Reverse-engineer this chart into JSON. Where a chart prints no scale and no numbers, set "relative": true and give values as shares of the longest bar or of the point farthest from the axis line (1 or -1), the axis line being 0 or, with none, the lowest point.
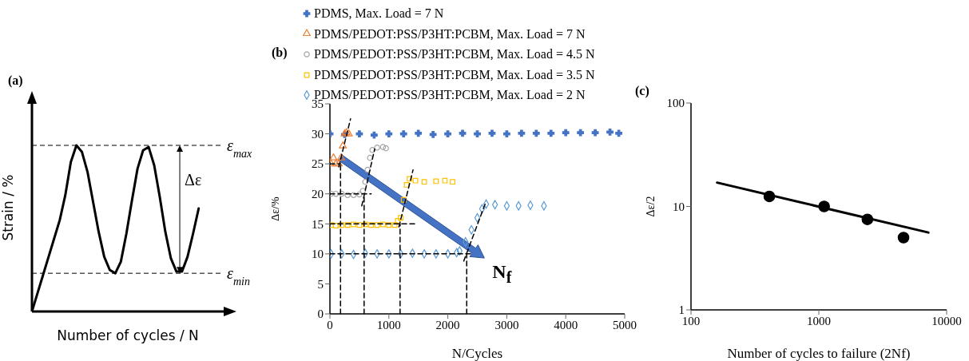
{
  "chart_data": [
    {
      "type": "line",
      "title": "(a)",
      "xlabel": "Number of cycles / N",
      "ylabel": "Strain / %",
      "relative": true,
      "color": "#000000",
      "marker": "none",
      "line_style": "solid",
      "categories": [
        null,
        null,
        null,
        null,
        null,
        null,
        null,
        null,
        null,
        null,
        null,
        null,
        null,
        null,
        null,
        null,
        null,
        null,
        null,
        null,
        null,
        null,
        null,
        null,
        null,
        null,
        null,
        null,
        null,
        null,
        null
      ],
      "values": [
        0,
        0.11,
        0.22,
        0.33,
        0.44,
        0.55,
        0.7,
        0.9,
        1,
        0.96,
        0.84,
        0.66,
        0.48,
        0.33,
        0.25,
        0.23,
        0.3,
        0.47,
        0.67,
        0.86,
        0.97,
        0.99,
        0.88,
        0.69,
        0.48,
        0.32,
        0.24,
        0.24,
        0.33,
        0.47,
        0.62
      ],
      "ref_lines": [
        {
          "axis": "y",
          "value": 1,
          "label": "ε$_{max}$",
          "color": "#000000",
          "line_style": "dashed"
        },
        {
          "axis": "y",
          "value": 0.23,
          "label": "ε$_{min}$",
          "color": "#000000",
          "line_style": "dashed"
        }
      ],
      "annotations": [
        "Δε"
      ]
    },
    {
      "type": "scatter",
      "title": "(b)",
      "xlabel": "N/Cycles",
      "ylabel": "Δε/%",
      "xlim": [
        0,
        5000
      ],
      "xticks": [
        0,
        1000,
        2000,
        3000,
        4000,
        5000
      ],
      "ylim": [
        0,
        35
      ],
      "yticks": [
        0,
        5,
        10,
        15,
        20,
        25,
        30,
        35
      ],
      "legend": "top",
      "annotations": [
        "N$_{f}$"
      ],
      "series": [
        {
          "name": "PDMS, Max. Load = 7 N",
          "color": "#4472c4",
          "marker": "cross",
          "x": [
            0,
            250,
            500,
            750,
            1000,
            1250,
            1500,
            1750,
            2000,
            2250,
            2500,
            2750,
            3000,
            3250,
            3500,
            3750,
            4000,
            4250,
            4500,
            4750,
            4900
          ],
          "values": [
            30,
            29.9,
            30,
            29.8,
            30,
            30,
            30.1,
            29.9,
            30,
            30.1,
            30,
            30.1,
            30,
            30.1,
            30.1,
            30.1,
            30.2,
            30.2,
            30.2,
            30.3,
            30.1
          ]
        },
        {
          "name": "PDMS/PEDOT:PSS/P3HT:PCBM, Max. Load = 7 N",
          "color": "#ed7d31",
          "marker": "triangle",
          "x": [
            20,
            60,
            100,
            150,
            190,
            220,
            250,
            280,
            320
          ],
          "values": [
            25,
            26,
            25,
            25,
            26,
            28,
            30,
            30.2,
            30
          ]
        },
        {
          "name": "PDMS/PEDOT:PSS/P3HT:PCBM, Max. Load = 4.5 N",
          "color": "#a5a5a5",
          "marker": "circle",
          "x": [
            20,
            100,
            200,
            300,
            400,
            500,
            560,
            600,
            640,
            680,
            720,
            800,
            900,
            950
          ],
          "values": [
            20,
            20,
            20,
            19.8,
            19.8,
            19.9,
            20.5,
            22,
            24,
            26,
            27.3,
            27.7,
            27.8,
            27.6
          ]
        },
        {
          "name": "PDMS/PEDOT:PSS/P3HT:PCBM, Max. Load = 3.5 N",
          "color": "#ffc000",
          "marker": "square",
          "x": [
            20,
            100,
            200,
            300,
            400,
            500,
            600,
            700,
            800,
            900,
            1000,
            1100,
            1150,
            1200,
            1250,
            1300,
            1350,
            1450,
            1600,
            1800,
            1950,
            2080
          ],
          "values": [
            14.8,
            14.7,
            14.8,
            14.8,
            14.9,
            14.8,
            14.9,
            14.8,
            14.8,
            14.9,
            14.8,
            14.8,
            15.5,
            16,
            19,
            21.5,
            22.5,
            22.2,
            22,
            22.1,
            22.2,
            22
          ]
        },
        {
          "name": "PDMS/PEDOT:PSS/P3HT:PCBM, Max. Load = 2 N",
          "color": "#5b9bd5",
          "marker": "diamond",
          "x": [
            20,
            200,
            400,
            600,
            800,
            1000,
            1200,
            1400,
            1600,
            1800,
            2000,
            2150,
            2200,
            2300,
            2400,
            2500,
            2580,
            2650,
            2800,
            3000,
            3200,
            3400,
            3630
          ],
          "values": [
            10,
            10,
            9.9,
            10.1,
            10,
            10,
            10,
            10.1,
            10,
            10,
            10,
            10.2,
            10.5,
            12,
            14,
            16,
            17.5,
            18.3,
            18.2,
            18,
            18,
            18.1,
            18
          ]
        },
        {
          "type": "line",
          "color": "#000000",
          "line_style": "dashed",
          "marker": "none",
          "x": [
            0,
            180
          ],
          "values": [
            25,
            25
          ]
        },
        {
          "type": "line",
          "color": "#000000",
          "line_style": "dashed",
          "marker": "none",
          "x": [
            180,
            180
          ],
          "values": [
            0,
            25
          ]
        },
        {
          "type": "line",
          "color": "#000000",
          "line_style": "dashed",
          "marker": "none",
          "x": [
            0,
            700
          ],
          "values": [
            20,
            20
          ]
        },
        {
          "type": "line",
          "color": "#000000",
          "line_style": "dashed",
          "marker": "none",
          "x": [
            580,
            580
          ],
          "values": [
            0,
            19.5
          ]
        },
        {
          "type": "line",
          "color": "#000000",
          "line_style": "dashed",
          "marker": "none",
          "x": [
            0,
            1470
          ],
          "values": [
            15,
            15
          ]
        },
        {
          "type": "line",
          "color": "#000000",
          "line_style": "dashed",
          "marker": "none",
          "x": [
            1190,
            1190
          ],
          "values": [
            0,
            15
          ]
        },
        {
          "type": "line",
          "color": "#000000",
          "line_style": "dashed",
          "marker": "none",
          "x": [
            0,
            2400
          ],
          "values": [
            10,
            10
          ]
        },
        {
          "type": "line",
          "color": "#000000",
          "line_style": "dashed",
          "marker": "none",
          "x": [
            2320,
            2320
          ],
          "values": [
            0,
            10
          ]
        },
        {
          "type": "line",
          "color": "#000000",
          "line_style": "dashed",
          "marker": "none",
          "x": [
            150,
            350
          ],
          "values": [
            24.5,
            32.5
          ]
        },
        {
          "type": "line",
          "color": "#000000",
          "line_style": "dashed",
          "marker": "none",
          "x": [
            540,
            760
          ],
          "values": [
            18,
            27.5
          ]
        },
        {
          "type": "line",
          "color": "#000000",
          "line_style": "dashed",
          "marker": "none",
          "x": [
            1170,
            1410
          ],
          "values": [
            14.5,
            24
          ]
        },
        {
          "type": "line",
          "color": "#000000",
          "line_style": "dashed",
          "marker": "none",
          "x": [
            2270,
            2640
          ],
          "values": [
            8.8,
            18.5
          ]
        }
      ]
    },
    {
      "type": "scatter",
      "title": "(c)",
      "xlabel": "Number of cycles to failure (2Nf)",
      "ylabel": "Δε/2",
      "log": "xy",
      "xlim": [
        100,
        10000
      ],
      "xticks": [
        100,
        1000,
        10000
      ],
      "ylim": [
        1,
        100
      ],
      "yticks": [
        1,
        10,
        100
      ],
      "series": [
        {
          "color": "#000000",
          "marker": "circle",
          "x": [
            410,
            1100,
            2400,
            4600
          ],
          "values": [
            12.5,
            10,
            7.5,
            5
          ]
        },
        {
          "type": "line",
          "color": "#000000",
          "line_style": "solid",
          "marker": "none",
          "x": [
            160,
            7200
          ],
          "values": [
            17,
            5.6
          ]
        }
      ]
    }
  ]
}
